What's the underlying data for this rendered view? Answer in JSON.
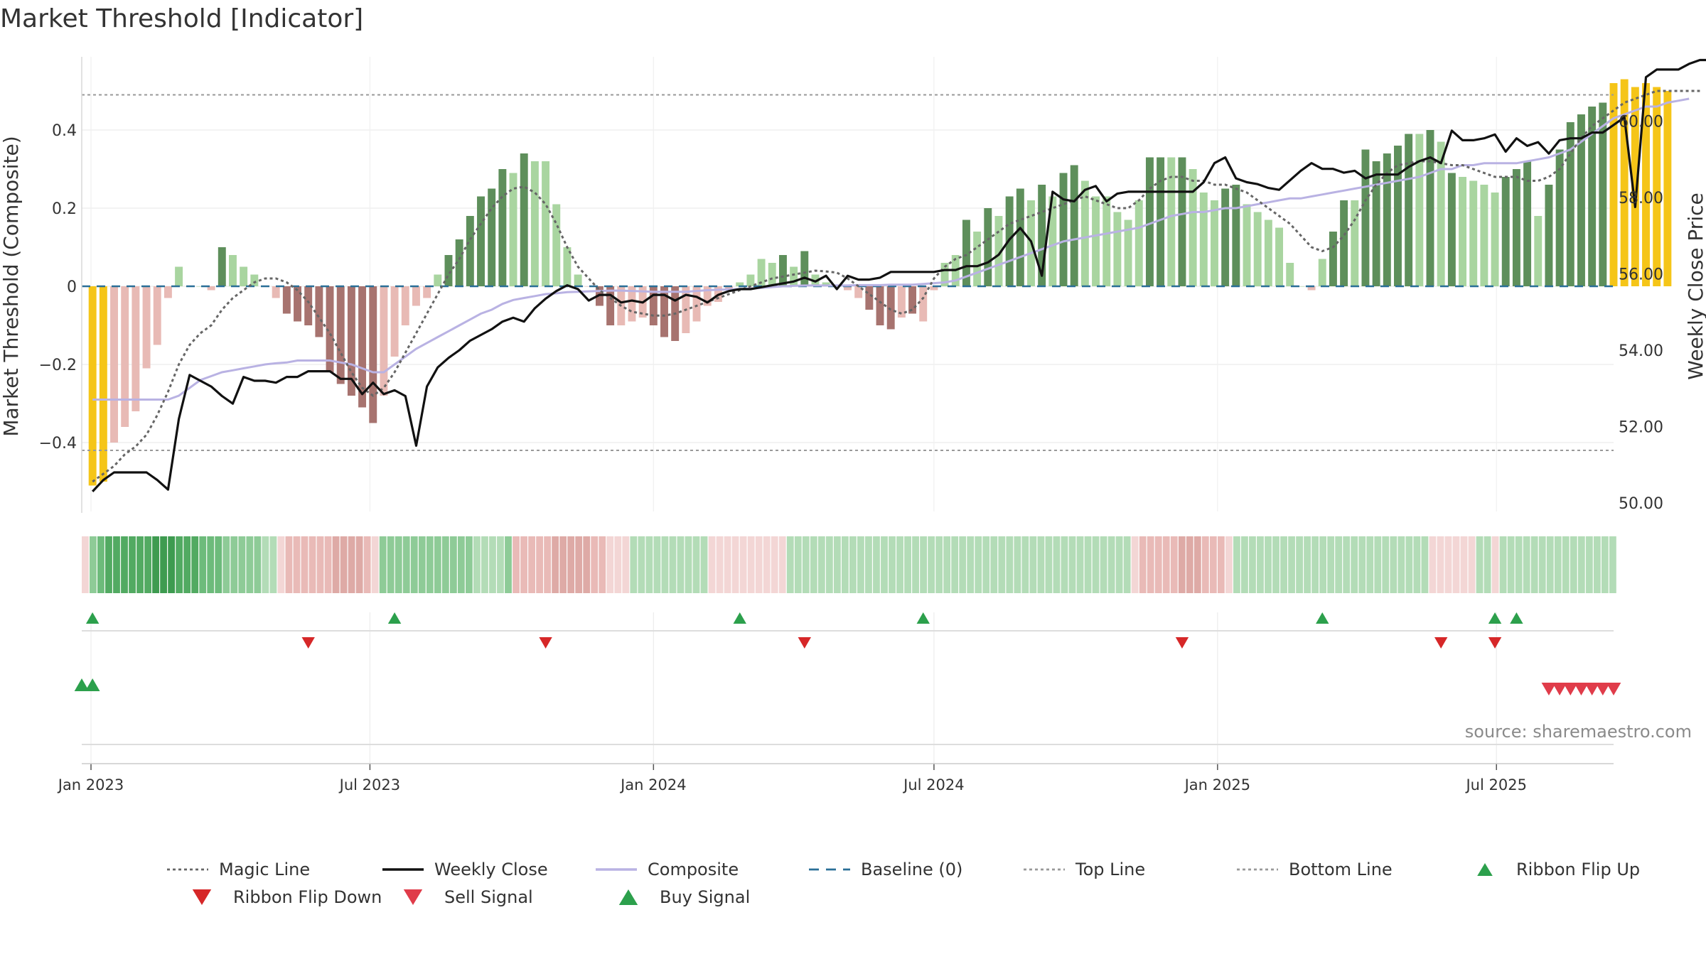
{
  "chart_data": {
    "type": "bar",
    "title": "Market Threshold [Indicator]",
    "ylabel_left": "Market Threshold (Composite)",
    "ylabel_right": "Weekly Close Price",
    "source": "source: sharemaestro.com",
    "x_ticks": [
      {
        "date": "2023-01-01",
        "label": "Jan 2023"
      },
      {
        "date": "2023-07-01",
        "label": "Jul 2023"
      },
      {
        "date": "2024-01-01",
        "label": "Jan 2024"
      },
      {
        "date": "2024-07-01",
        "label": "Jul 2024"
      },
      {
        "date": "2025-01-01",
        "label": "Jan 2025"
      },
      {
        "date": "2025-07-01",
        "label": "Jul 2025"
      }
    ],
    "x_range": [
      "2022-12-26",
      "2025-09-15"
    ],
    "y_left": {
      "range": [
        -0.58,
        0.59
      ],
      "ticks": [
        -0.4,
        -0.2,
        0,
        0.2,
        0.4
      ],
      "tick_labels": [
        "−0.4",
        "−0.2",
        "0",
        "0.2",
        "0.4"
      ]
    },
    "y_right": {
      "range": [
        49.6,
        62.4
      ],
      "ticks": [
        50,
        52,
        54,
        56,
        58,
        60
      ],
      "tick_labels": [
        "50.00",
        "52.00",
        "54.00",
        "56.00",
        "58.00",
        "60.00"
      ]
    },
    "top_line": 0.49,
    "bottom_line": -0.42,
    "baseline": 0,
    "legend": [
      {
        "label": "Magic Line",
        "kind": "dotted-line",
        "color": "#666666"
      },
      {
        "label": "Weekly Close",
        "kind": "solid-line",
        "color": "#111111"
      },
      {
        "label": "Composite",
        "kind": "solid-line",
        "color": "#b9b2e3"
      },
      {
        "label": "Baseline (0)",
        "kind": "dashed-line",
        "color": "#2a6f97"
      },
      {
        "label": "Top Line",
        "kind": "dotted-line",
        "color": "#999999"
      },
      {
        "label": "Bottom Line",
        "kind": "dotted-line",
        "color": "#999999"
      },
      {
        "label": "Ribbon Flip Up",
        "kind": "triangle-up",
        "color": "#2ca04c"
      },
      {
        "label": "Ribbon Flip Down",
        "kind": "triangle-down",
        "color": "#d62728"
      },
      {
        "label": "Sell Signal",
        "kind": "triangle-down",
        "color": "#e03c4a"
      },
      {
        "label": "Buy Signal",
        "kind": "triangle-up",
        "color": "#2ca04c"
      }
    ],
    "colors": {
      "gold": "#f5c518",
      "strong_up": "#5e8f5b",
      "weak_up": "#a9d5a0",
      "strong_down": "#a7736f",
      "weak_down": "#e8bab5"
    },
    "weeks_start": "2023-01-02",
    "bars": [
      -0.51,
      -0.5,
      -0.4,
      -0.36,
      -0.32,
      -0.21,
      -0.15,
      -0.03,
      0.05,
      0,
      0,
      -0.01,
      0.1,
      0.08,
      0.05,
      0.03,
      0,
      -0.03,
      -0.07,
      -0.09,
      -0.1,
      -0.13,
      -0.22,
      -0.25,
      -0.28,
      -0.31,
      -0.35,
      -0.28,
      -0.18,
      -0.1,
      -0.05,
      -0.03,
      0.03,
      0.08,
      0.12,
      0.18,
      0.23,
      0.25,
      0.3,
      0.29,
      0.34,
      0.32,
      0.32,
      0.21,
      0.1,
      0.03,
      0,
      -0.05,
      -0.1,
      -0.1,
      -0.09,
      -0.08,
      -0.1,
      -0.13,
      -0.14,
      -0.12,
      -0.09,
      -0.05,
      -0.04,
      -0.01,
      0.01,
      0.03,
      0.07,
      0.06,
      0.08,
      0.05,
      0.09,
      0.03,
      0.01,
      0,
      -0.01,
      -0.03,
      -0.06,
      -0.1,
      -0.11,
      -0.08,
      -0.07,
      -0.09,
      -0.01,
      0.06,
      0.08,
      0.17,
      0.14,
      0.2,
      0.18,
      0.23,
      0.25,
      0.22,
      0.26,
      0.23,
      0.29,
      0.31,
      0.27,
      0.23,
      0.23,
      0.19,
      0.17,
      0.22,
      0.33,
      0.33,
      0.33,
      0.33,
      0.3,
      0.24,
      0.22,
      0.25,
      0.26,
      0.21,
      0.19,
      0.17,
      0.15,
      0.06,
      0,
      -0.01,
      0.07,
      0.14,
      0.22,
      0.22,
      0.35,
      0.32,
      0.34,
      0.36,
      0.39,
      0.39,
      0.4,
      0.37,
      0.29,
      0.28,
      0.27,
      0.26,
      0.24,
      0.28,
      0.3,
      0.32,
      0.18,
      0.26,
      0.35,
      0.42,
      0.44,
      0.46,
      0.47,
      0.52,
      0.53,
      0.51,
      0.52,
      0.51,
      0.5
    ],
    "bar_kind": [
      "gold",
      "gold",
      "wdn",
      "wdn",
      "wdn",
      "wdn",
      "wdn",
      "wdn",
      "wup",
      "wup",
      "wup",
      "wdn",
      "sup",
      "wup",
      "wup",
      "wup",
      "wdn",
      "wdn",
      "sdn",
      "sdn",
      "sdn",
      "sdn",
      "sdn",
      "sdn",
      "sdn",
      "sdn",
      "sdn",
      "wdn",
      "wdn",
      "wdn",
      "wdn",
      "wdn",
      "wup",
      "sup",
      "sup",
      "sup",
      "sup",
      "sup",
      "sup",
      "wup",
      "sup",
      "wup",
      "wup",
      "wup",
      "wup",
      "wup",
      "wdn",
      "sdn",
      "sdn",
      "wdn",
      "wdn",
      "wdn",
      "sdn",
      "sdn",
      "sdn",
      "wdn",
      "wdn",
      "wdn",
      "wdn",
      "wdn",
      "wup",
      "wup",
      "wup",
      "wup",
      "sup",
      "wup",
      "sup",
      "wup",
      "wup",
      "wup",
      "wdn",
      "wdn",
      "sdn",
      "sdn",
      "sdn",
      "wdn",
      "sdn",
      "wdn",
      "wdn",
      "wup",
      "wup",
      "sup",
      "wup",
      "sup",
      "wup",
      "sup",
      "sup",
      "wup",
      "sup",
      "wup",
      "sup",
      "sup",
      "wup",
      "wup",
      "wup",
      "wup",
      "wup",
      "wup",
      "sup",
      "sup",
      "wup",
      "sup",
      "wup",
      "wup",
      "wup",
      "sup",
      "sup",
      "wup",
      "wup",
      "wup",
      "wup",
      "wup",
      "wup",
      "wdn",
      "wup",
      "sup",
      "sup",
      "wup",
      "sup",
      "sup",
      "sup",
      "sup",
      "sup",
      "wup",
      "sup",
      "wup",
      "sup",
      "wup",
      "wup",
      "wup",
      "wup",
      "sup",
      "sup",
      "sup",
      "wup",
      "sup",
      "sup",
      "sup",
      "sup",
      "sup",
      "sup",
      "gold",
      "gold",
      "gold",
      "gold",
      "gold",
      "gold"
    ],
    "composite": [
      -0.29,
      -0.29,
      -0.29,
      -0.29,
      -0.29,
      -0.29,
      -0.29,
      -0.29,
      -0.28,
      -0.26,
      -0.24,
      -0.23,
      -0.22,
      -0.215,
      -0.21,
      -0.205,
      -0.2,
      -0.197,
      -0.195,
      -0.19,
      -0.19,
      -0.19,
      -0.19,
      -0.195,
      -0.2,
      -0.21,
      -0.22,
      -0.22,
      -0.2,
      -0.18,
      -0.16,
      -0.145,
      -0.13,
      -0.115,
      -0.1,
      -0.085,
      -0.07,
      -0.06,
      -0.045,
      -0.035,
      -0.03,
      -0.025,
      -0.02,
      -0.018,
      -0.015,
      -0.014,
      -0.013,
      -0.012,
      -0.011,
      -0.011,
      -0.012,
      -0.013,
      -0.014,
      -0.014,
      -0.014,
      -0.014,
      -0.012,
      -0.01,
      -0.009,
      -0.008,
      -0.007,
      -0.006,
      -0.004,
      -0.002,
      0,
      0.001,
      0.002,
      0.002,
      0.002,
      0.002,
      0.002,
      0.003,
      0.003,
      0.003,
      0.004,
      0.004,
      0.004,
      0.006,
      0.008,
      0.01,
      0.015,
      0.025,
      0.035,
      0.045,
      0.055,
      0.065,
      0.075,
      0.085,
      0.095,
      0.105,
      0.115,
      0.12,
      0.125,
      0.13,
      0.135,
      0.14,
      0.145,
      0.15,
      0.16,
      0.17,
      0.18,
      0.185,
      0.19,
      0.19,
      0.195,
      0.2,
      0.2,
      0.205,
      0.21,
      0.215,
      0.22,
      0.225,
      0.225,
      0.23,
      0.235,
      0.24,
      0.245,
      0.25,
      0.255,
      0.26,
      0.265,
      0.27,
      0.275,
      0.28,
      0.29,
      0.3,
      0.3,
      0.31,
      0.31,
      0.315,
      0.315,
      0.315,
      0.315,
      0.32,
      0.325,
      0.33,
      0.34,
      0.35,
      0.37,
      0.39,
      0.41,
      0.43,
      0.44,
      0.45,
      0.46,
      0.46,
      0.47,
      0.475,
      0.48
    ],
    "magic": [
      -0.5,
      -0.48,
      -0.46,
      -0.43,
      -0.41,
      -0.38,
      -0.33,
      -0.27,
      -0.2,
      -0.15,
      -0.12,
      -0.1,
      -0.06,
      -0.03,
      -0.01,
      0.01,
      0.02,
      0.02,
      0.01,
      -0.01,
      -0.04,
      -0.08,
      -0.12,
      -0.17,
      -0.22,
      -0.26,
      -0.28,
      -0.26,
      -0.22,
      -0.17,
      -0.12,
      -0.07,
      -0.02,
      0.03,
      0.07,
      0.12,
      0.16,
      0.2,
      0.23,
      0.25,
      0.255,
      0.24,
      0.21,
      0.16,
      0.1,
      0.05,
      0.02,
      -0.01,
      -0.03,
      -0.05,
      -0.065,
      -0.07,
      -0.075,
      -0.075,
      -0.07,
      -0.06,
      -0.05,
      -0.04,
      -0.03,
      -0.02,
      -0.01,
      0,
      0.01,
      0.02,
      0.025,
      0.03,
      0.035,
      0.04,
      0.038,
      0.035,
      0.02,
      0,
      -0.02,
      -0.04,
      -0.06,
      -0.07,
      -0.06,
      -0.03,
      0.02,
      0.05,
      0.07,
      0.08,
      0.1,
      0.12,
      0.14,
      0.16,
      0.17,
      0.18,
      0.19,
      0.2,
      0.21,
      0.22,
      0.23,
      0.22,
      0.21,
      0.2,
      0.2,
      0.22,
      0.25,
      0.27,
      0.28,
      0.28,
      0.27,
      0.27,
      0.26,
      0.26,
      0.25,
      0.24,
      0.22,
      0.2,
      0.18,
      0.16,
      0.13,
      0.1,
      0.09,
      0.1,
      0.13,
      0.17,
      0.22,
      0.26,
      0.29,
      0.31,
      0.315,
      0.32,
      0.32,
      0.315,
      0.31,
      0.31,
      0.3,
      0.29,
      0.28,
      0.28,
      0.28,
      0.27,
      0.27,
      0.28,
      0.3,
      0.34,
      0.38,
      0.41,
      0.43,
      0.45,
      0.47,
      0.48,
      0.49,
      0.5,
      0.5,
      0.5,
      0.5,
      0.5
    ],
    "weekly_close": [
      50.3,
      50.6,
      50.8,
      50.8,
      50.8,
      50.8,
      50.6,
      50.35,
      52.2,
      53.35,
      53.2,
      53.05,
      52.8,
      52.6,
      53.3,
      53.2,
      53.2,
      53.15,
      53.3,
      53.3,
      53.45,
      53.45,
      53.45,
      53.25,
      53.25,
      52.85,
      53.15,
      52.85,
      52.95,
      52.8,
      51.5,
      53.05,
      53.55,
      53.8,
      54,
      54.25,
      54.4,
      54.55,
      54.75,
      54.85,
      54.75,
      55.1,
      55.35,
      55.55,
      55.7,
      55.6,
      55.3,
      55.45,
      55.45,
      55.25,
      55.3,
      55.25,
      55.45,
      55.45,
      55.3,
      55.45,
      55.4,
      55.25,
      55.45,
      55.55,
      55.6,
      55.6,
      55.65,
      55.7,
      55.75,
      55.8,
      55.9,
      55.8,
      55.95,
      55.6,
      55.95,
      55.85,
      55.85,
      55.9,
      56.05,
      56.05,
      56.05,
      56.05,
      56.05,
      56.1,
      56.1,
      56.2,
      56.2,
      56.3,
      56.5,
      56.9,
      57.2,
      56.85,
      55.95,
      58.15,
      57.95,
      57.9,
      58.2,
      58.3,
      57.9,
      58.1,
      58.15,
      58.15,
      58.15,
      58.15,
      58.15,
      58.15,
      58.15,
      58.4,
      58.9,
      59.05,
      58.5,
      58.4,
      58.35,
      58.25,
      58.2,
      58.45,
      58.7,
      58.9,
      58.75,
      58.75,
      58.65,
      58.7,
      58.5,
      58.6,
      58.6,
      58.6,
      58.8,
      58.95,
      59.05,
      58.9,
      59.75,
      59.5,
      59.5,
      59.55,
      59.65,
      59.2,
      59.55,
      59.35,
      59.45,
      59.15,
      59.5,
      59.55,
      59.55,
      59.7,
      59.7,
      59.9,
      60.1,
      57.75,
      61.15,
      61.35,
      61.35,
      61.35,
      61.5,
      61.6,
      61.6,
      61.6,
      61.6,
      61.6,
      61.7
    ],
    "ribbon": {
      "colors": [
        "#3e9b50",
        "#52aa62",
        "#6dbb7b",
        "#8ecb97",
        "#b3dcb7",
        "#cde8cf",
        "#f3d6d5",
        "#e9bab7",
        "#deaaa6"
      ],
      "levels": [
        6,
        3,
        2,
        1,
        1,
        1,
        1,
        1,
        1,
        0,
        0,
        0,
        1,
        1,
        1,
        2,
        2,
        2,
        3,
        3,
        3,
        3,
        3,
        4,
        4,
        6,
        7,
        7,
        7,
        7,
        7,
        7,
        8,
        8,
        8,
        8,
        7,
        6,
        3,
        3,
        3,
        3,
        3,
        3,
        3,
        3,
        3,
        3,
        3,
        3,
        4,
        4,
        4,
        4,
        3,
        7,
        7,
        7,
        7,
        7,
        8,
        8,
        8,
        8,
        8,
        7,
        7,
        6,
        6,
        6,
        4,
        4,
        4,
        4,
        4,
        4,
        4,
        4,
        4,
        4,
        6,
        6,
        6,
        6,
        6,
        6,
        6,
        6,
        6,
        6,
        4,
        4,
        4,
        4,
        4,
        4,
        4,
        4,
        4,
        4,
        4,
        4,
        4,
        4,
        4,
        4,
        4,
        4,
        4,
        4,
        4,
        4,
        4,
        4,
        4,
        4,
        4,
        4,
        4,
        4,
        4,
        4,
        4,
        4,
        4,
        4,
        4,
        4,
        4,
        4,
        4,
        4,
        4,
        4,
        6,
        7,
        7,
        7,
        7,
        7,
        8,
        8,
        8,
        7,
        7,
        7,
        6,
        4,
        4,
        4,
        4,
        4,
        4,
        4,
        4,
        4,
        4,
        4,
        4,
        4,
        4,
        4,
        4,
        4,
        4,
        4,
        4,
        4,
        4,
        4,
        4,
        4,
        6,
        6,
        6,
        6,
        6,
        6,
        4,
        4,
        6,
        4,
        4,
        4,
        4,
        4,
        4,
        4,
        4,
        4,
        4,
        4,
        4,
        4,
        4,
        4
      ]
    },
    "ribbon_flip_up": [
      "2023-01-02",
      "2023-07-17",
      "2024-02-26",
      "2024-06-24",
      "2025-03-10",
      "2025-06-30",
      "2025-07-14"
    ],
    "ribbon_flip_down": [
      "2023-05-22",
      "2023-10-23",
      "2024-04-08",
      "2024-12-09",
      "2025-05-26",
      "2025-06-30"
    ],
    "buy_signals": [
      "2022-12-26",
      "2023-01-02"
    ],
    "sell_signals": [
      "2025-08-04",
      "2025-08-11",
      "2025-08-18",
      "2025-08-25",
      "2025-09-01",
      "2025-09-08",
      "2025-09-15"
    ]
  }
}
